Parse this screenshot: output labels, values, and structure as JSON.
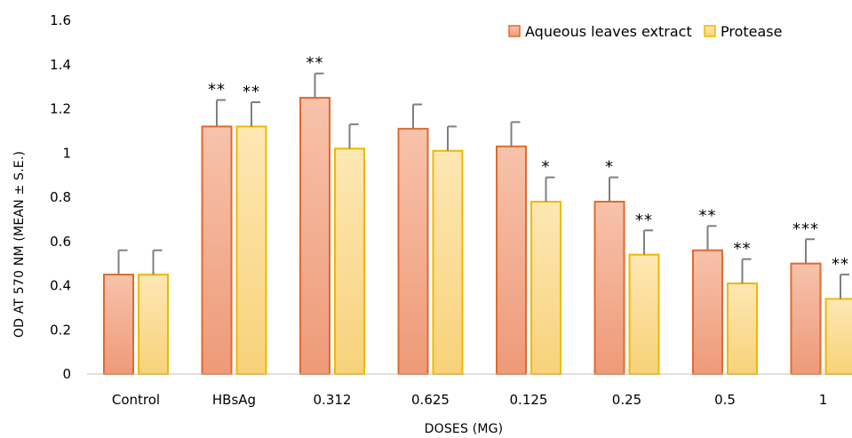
{
  "chart_data": {
    "type": "bar",
    "xlabel": "DOSES (MG)",
    "ylabel": "OD AT 570 NM (MEAN ± S.E.)",
    "ylim": [
      0,
      1.6
    ],
    "yticks": [
      "0",
      "0.2",
      "0.4",
      "0.6",
      "0.8",
      "1",
      "1.2",
      "1.4",
      "1.6"
    ],
    "categories": [
      "Control",
      "HBsAg",
      "0.312",
      "0.625",
      "0.125",
      "0.25",
      "0.5",
      "1"
    ],
    "grid": false,
    "legend_position": "top-right",
    "series": [
      {
        "name": "Aqueous leaves extract",
        "color": "#E8835A",
        "values": [
          0.45,
          1.12,
          1.25,
          1.11,
          1.03,
          0.78,
          0.56,
          0.5
        ],
        "errors": [
          0.11,
          0.12,
          0.11,
          0.11,
          0.11,
          0.11,
          0.11,
          0.11
        ],
        "significance": [
          "",
          "**",
          "**",
          "",
          "",
          "*",
          "**",
          "***"
        ]
      },
      {
        "name": "Protease",
        "color": "#F2C230",
        "values": [
          0.45,
          1.12,
          1.02,
          1.01,
          0.78,
          0.54,
          0.41,
          0.34
        ],
        "errors": [
          0.11,
          0.11,
          0.11,
          0.11,
          0.11,
          0.11,
          0.11,
          0.11
        ],
        "significance": [
          "",
          "**",
          "",
          "",
          "*",
          "**",
          "**",
          "**"
        ]
      }
    ]
  }
}
